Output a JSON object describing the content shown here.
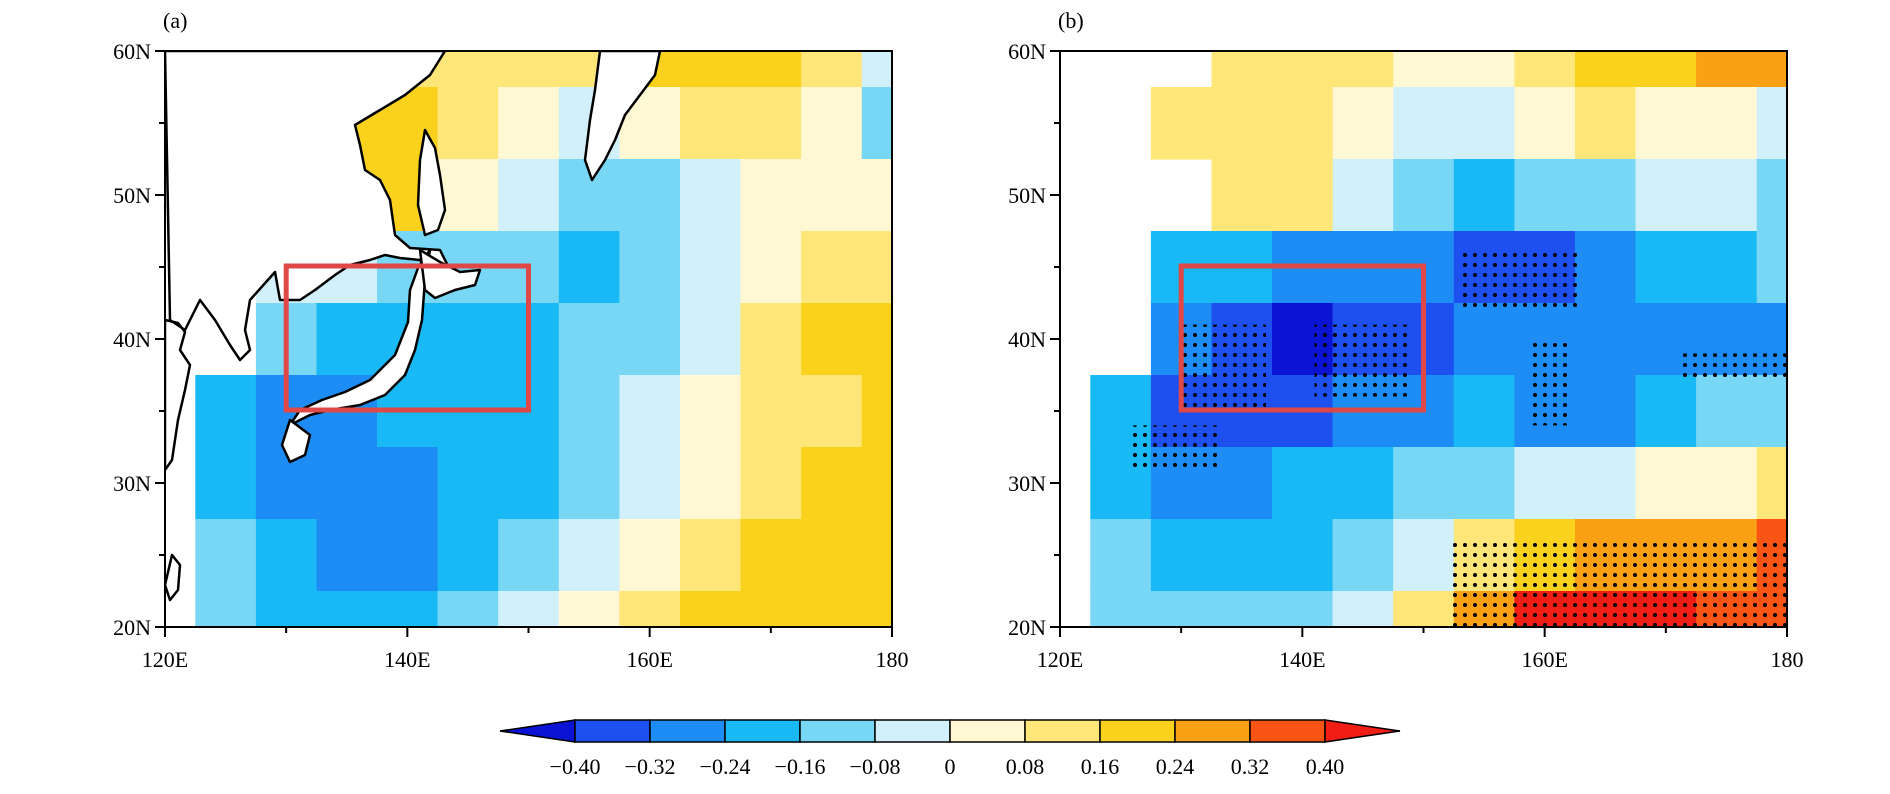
{
  "figure": {
    "type": "contour-map",
    "panels": [
      {
        "label": "(a)",
        "stippling": false
      },
      {
        "label": "(b)",
        "stippling": true
      }
    ]
  },
  "chart_data": {
    "type": "heatmap",
    "projection": "lat-lon",
    "lon_range": [
      120,
      180
    ],
    "lat_range": [
      20,
      60
    ],
    "x_ticks": [
      120,
      140,
      160,
      180
    ],
    "x_tick_labels": [
      "120E",
      "140E",
      "160E",
      "180"
    ],
    "x_minor_step": 10,
    "y_ticks": [
      20,
      30,
      40,
      50,
      60
    ],
    "y_tick_labels": [
      "20N",
      "30N",
      "40N",
      "50N",
      "60N"
    ],
    "y_minor_step": 5,
    "region_box": {
      "lon": [
        130,
        150
      ],
      "lat": [
        35,
        45
      ],
      "color": "#e04848"
    },
    "colorbar": {
      "levels": [
        -0.4,
        -0.32,
        -0.24,
        -0.16,
        -0.08,
        0,
        0.08,
        0.16,
        0.24,
        0.32,
        0.4
      ],
      "labels": [
        "−0.40",
        "−0.32",
        "−0.24",
        "−0.16",
        "−0.08",
        "0",
        "0.08",
        "0.16",
        "0.24",
        "0.32",
        "0.40"
      ],
      "colors": [
        "#0a14d2",
        "#1e50f0",
        "#1e8cf5",
        "#19b9f5",
        "#78d7f5",
        "#d2f0fa",
        "#fff8d2",
        "#ffe678",
        "#fad21e",
        "#faa014",
        "#fa5514",
        "#f01e14"
      ],
      "extend": "both"
    },
    "panels": [
      {
        "label": "(a)",
        "grid_lon": [
          120,
          125,
          130,
          135,
          140,
          145,
          150,
          155,
          160,
          165,
          170,
          175,
          180
        ],
        "grid_lat": [
          60,
          55,
          50,
          45,
          40,
          35,
          30,
          25,
          20
        ],
        "values": [
          [
            null,
            null,
            null,
            0.12,
            0.14,
            0.12,
            0.1,
            0.14,
            0.18,
            0.2,
            0.18,
            0.1,
            -0.06
          ],
          [
            null,
            null,
            0.12,
            0.18,
            0.18,
            0.12,
            0.04,
            -0.02,
            0.06,
            0.12,
            0.12,
            0.04,
            -0.14
          ],
          [
            null,
            null,
            null,
            0.2,
            0.16,
            0.04,
            -0.08,
            -0.14,
            -0.1,
            -0.02,
            0.04,
            0.06,
            0.0
          ],
          [
            null,
            null,
            -0.04,
            -0.08,
            -0.12,
            -0.14,
            -0.16,
            -0.18,
            -0.12,
            -0.04,
            0.06,
            0.14,
            0.14
          ],
          [
            null,
            null,
            -0.16,
            -0.2,
            -0.2,
            -0.22,
            -0.2,
            -0.16,
            -0.1,
            -0.02,
            0.08,
            0.16,
            0.18
          ],
          [
            null,
            -0.2,
            -0.28,
            -0.26,
            -0.22,
            -0.24,
            -0.22,
            -0.14,
            -0.08,
            0.0,
            0.08,
            0.14,
            0.16
          ],
          [
            null,
            -0.18,
            -0.26,
            -0.28,
            -0.26,
            -0.24,
            -0.22,
            -0.16,
            -0.06,
            0.04,
            0.12,
            0.16,
            0.18
          ],
          [
            null,
            -0.14,
            -0.24,
            -0.28,
            -0.26,
            -0.22,
            -0.16,
            -0.08,
            0.02,
            0.12,
            0.18,
            0.18,
            0.18
          ],
          [
            null,
            -0.12,
            -0.18,
            -0.22,
            -0.18,
            -0.14,
            -0.08,
            0.02,
            0.12,
            0.18,
            0.2,
            0.22,
            0.2
          ]
        ]
      },
      {
        "label": "(b)",
        "grid_lon": [
          120,
          125,
          130,
          135,
          140,
          145,
          150,
          155,
          160,
          165,
          170,
          175,
          180
        ],
        "grid_lat": [
          60,
          55,
          50,
          45,
          40,
          35,
          30,
          25,
          20
        ],
        "values": [
          [
            null,
            null,
            null,
            0.1,
            0.14,
            0.1,
            0.04,
            0.06,
            0.14,
            0.2,
            0.2,
            0.28,
            0.24
          ],
          [
            null,
            null,
            0.08,
            0.12,
            0.14,
            0.06,
            -0.02,
            -0.06,
            0.02,
            0.08,
            0.06,
            0.02,
            -0.04
          ],
          [
            null,
            null,
            null,
            0.12,
            0.08,
            -0.04,
            -0.14,
            -0.2,
            -0.16,
            -0.1,
            -0.06,
            -0.08,
            -0.1
          ],
          [
            null,
            null,
            -0.18,
            -0.24,
            -0.3,
            -0.3,
            -0.28,
            -0.34,
            -0.34,
            -0.3,
            -0.22,
            -0.18,
            -0.14
          ],
          [
            null,
            null,
            -0.3,
            -0.4,
            -0.42,
            -0.4,
            -0.36,
            -0.32,
            -0.3,
            -0.26,
            -0.26,
            -0.32,
            -0.3
          ],
          [
            null,
            -0.22,
            -0.36,
            -0.4,
            -0.36,
            -0.3,
            -0.26,
            -0.24,
            -0.32,
            -0.3,
            -0.24,
            -0.16,
            -0.12
          ],
          [
            null,
            -0.18,
            -0.26,
            -0.28,
            -0.24,
            -0.2,
            -0.16,
            -0.12,
            -0.06,
            -0.04,
            0.0,
            0.06,
            0.12
          ],
          [
            null,
            -0.14,
            -0.22,
            -0.22,
            -0.18,
            -0.12,
            -0.04,
            0.08,
            0.22,
            0.3,
            0.28,
            0.3,
            0.32
          ],
          [
            null,
            -0.1,
            -0.16,
            -0.16,
            -0.1,
            -0.02,
            0.12,
            0.3,
            0.42,
            0.44,
            0.42,
            0.36,
            0.34
          ]
        ],
        "stipple_regions": [
          {
            "lon": [
              130,
              137
            ],
            "lat": [
              35,
              41
            ]
          },
          {
            "lon": [
              141,
              149
            ],
            "lat": [
              36,
              41
            ]
          },
          {
            "lon": [
              126,
              133
            ],
            "lat": [
              31,
              34
            ]
          },
          {
            "lon": [
              153,
              163
            ],
            "lat": [
              42,
              46
            ]
          },
          {
            "lon": [
              159,
              162
            ],
            "lat": [
              34,
              40
            ]
          },
          {
            "lon": [
              171,
              180
            ],
            "lat": [
              37,
              39
            ]
          },
          {
            "lon": [
              152,
              180
            ],
            "lat": [
              20,
              26
            ]
          }
        ]
      }
    ]
  }
}
